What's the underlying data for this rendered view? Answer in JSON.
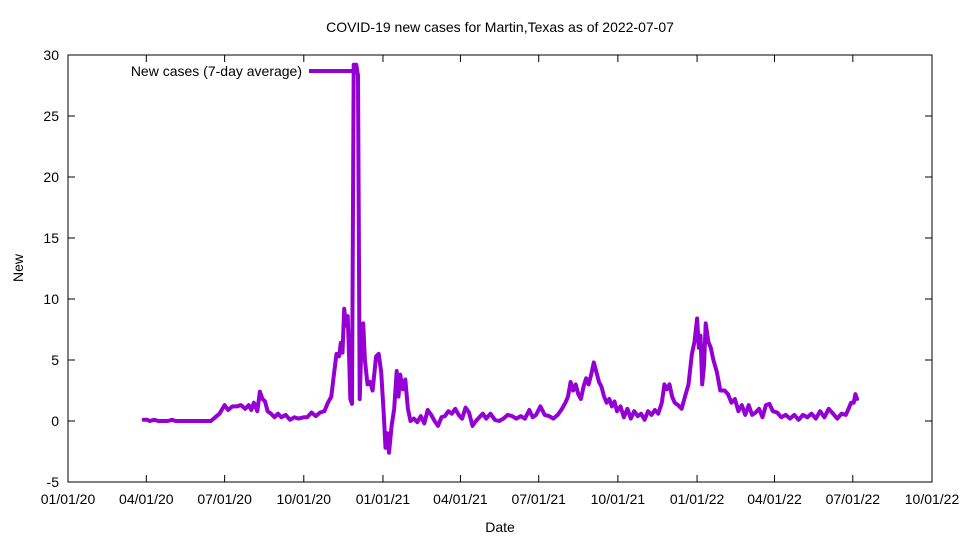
{
  "chart_data": {
    "type": "line",
    "title": "COVID-19 new cases for Martin,Texas as of 2022-07-07",
    "xlabel": "Date",
    "ylabel": "New",
    "xlim": [
      "2020-01-01",
      "2022-10-01"
    ],
    "ylim": [
      -5,
      30
    ],
    "grid": false,
    "legend_position": "top-left",
    "x_ticks": [
      "01/01/20",
      "04/01/20",
      "07/01/20",
      "10/01/20",
      "01/01/21",
      "04/01/21",
      "07/01/21",
      "10/01/21",
      "01/01/22",
      "04/01/22",
      "07/01/22",
      "10/01/22"
    ],
    "x_tick_dates": [
      "2020-01-01",
      "2020-04-01",
      "2020-07-01",
      "2020-10-01",
      "2021-01-01",
      "2021-04-01",
      "2021-07-01",
      "2021-10-01",
      "2022-01-01",
      "2022-04-01",
      "2022-07-01",
      "2022-10-01"
    ],
    "y_ticks": [
      -5,
      0,
      5,
      10,
      15,
      20,
      25,
      30
    ],
    "series": [
      {
        "name": "New cases (7-day average)",
        "color": "#9400d3",
        "points": [
          [
            "2020-03-29",
            0.1
          ],
          [
            "2020-04-02",
            0.1
          ],
          [
            "2020-04-05",
            0.0
          ],
          [
            "2020-04-10",
            0.1
          ],
          [
            "2020-04-15",
            0.0
          ],
          [
            "2020-04-20",
            0.0
          ],
          [
            "2020-04-26",
            0.0
          ],
          [
            "2020-05-01",
            0.1
          ],
          [
            "2020-05-05",
            0.0
          ],
          [
            "2020-05-15",
            0.0
          ],
          [
            "2020-05-25",
            0.0
          ],
          [
            "2020-06-05",
            0.0
          ],
          [
            "2020-06-15",
            0.0
          ],
          [
            "2020-06-20",
            0.3
          ],
          [
            "2020-06-25",
            0.6
          ],
          [
            "2020-07-01",
            1.3
          ],
          [
            "2020-07-05",
            0.9
          ],
          [
            "2020-07-10",
            1.2
          ],
          [
            "2020-07-15",
            1.2
          ],
          [
            "2020-07-20",
            1.3
          ],
          [
            "2020-07-25",
            1.0
          ],
          [
            "2020-07-29",
            1.3
          ],
          [
            "2020-08-01",
            0.9
          ],
          [
            "2020-08-04",
            1.5
          ],
          [
            "2020-08-08",
            0.8
          ],
          [
            "2020-08-11",
            2.4
          ],
          [
            "2020-08-14",
            1.8
          ],
          [
            "2020-08-17",
            1.6
          ],
          [
            "2020-08-20",
            0.8
          ],
          [
            "2020-08-24",
            0.6
          ],
          [
            "2020-08-28",
            0.3
          ],
          [
            "2020-09-01",
            0.6
          ],
          [
            "2020-09-05",
            0.3
          ],
          [
            "2020-09-10",
            0.5
          ],
          [
            "2020-09-15",
            0.1
          ],
          [
            "2020-09-20",
            0.3
          ],
          [
            "2020-09-25",
            0.2
          ],
          [
            "2020-10-01",
            0.3
          ],
          [
            "2020-10-05",
            0.3
          ],
          [
            "2020-10-10",
            0.7
          ],
          [
            "2020-10-15",
            0.4
          ],
          [
            "2020-10-20",
            0.7
          ],
          [
            "2020-10-25",
            0.8
          ],
          [
            "2020-10-29",
            1.5
          ],
          [
            "2020-11-02",
            2.0
          ],
          [
            "2020-11-05",
            3.8
          ],
          [
            "2020-11-08",
            5.5
          ],
          [
            "2020-11-11",
            5.3
          ],
          [
            "2020-11-13",
            6.4
          ],
          [
            "2020-11-15",
            5.6
          ],
          [
            "2020-11-17",
            9.2
          ],
          [
            "2020-11-19",
            7.8
          ],
          [
            "2020-11-21",
            8.6
          ],
          [
            "2020-11-23",
            4.5
          ],
          [
            "2020-11-24",
            1.8
          ],
          [
            "2020-11-26",
            1.4
          ],
          [
            "2020-11-28",
            29.2
          ],
          [
            "2020-12-01",
            29.2
          ],
          [
            "2020-12-03",
            28.3
          ],
          [
            "2020-12-05",
            1.8
          ],
          [
            "2020-12-07",
            6.5
          ],
          [
            "2020-12-09",
            8.0
          ],
          [
            "2020-12-11",
            5.0
          ],
          [
            "2020-12-14",
            3.0
          ],
          [
            "2020-12-17",
            3.2
          ],
          [
            "2020-12-20",
            2.5
          ],
          [
            "2020-12-24",
            5.3
          ],
          [
            "2020-12-27",
            5.5
          ],
          [
            "2020-12-30",
            4.0
          ],
          [
            "2021-01-02",
            0.5
          ],
          [
            "2021-01-04",
            -2.2
          ],
          [
            "2021-01-06",
            -1.0
          ],
          [
            "2021-01-08",
            -2.6
          ],
          [
            "2021-01-11",
            -0.4
          ],
          [
            "2021-01-14",
            1.0
          ],
          [
            "2021-01-17",
            4.1
          ],
          [
            "2021-01-19",
            2.0
          ],
          [
            "2021-01-21",
            3.8
          ],
          [
            "2021-01-24",
            2.6
          ],
          [
            "2021-01-27",
            3.4
          ],
          [
            "2021-01-30",
            1.0
          ],
          [
            "2021-02-02",
            0.0
          ],
          [
            "2021-02-06",
            0.2
          ],
          [
            "2021-02-10",
            -0.1
          ],
          [
            "2021-02-14",
            0.4
          ],
          [
            "2021-02-18",
            -0.2
          ],
          [
            "2021-02-22",
            0.9
          ],
          [
            "2021-02-26",
            0.5
          ],
          [
            "2021-03-02",
            0.0
          ],
          [
            "2021-03-06",
            -0.4
          ],
          [
            "2021-03-10",
            0.3
          ],
          [
            "2021-03-14",
            0.4
          ],
          [
            "2021-03-18",
            0.8
          ],
          [
            "2021-03-22",
            0.6
          ],
          [
            "2021-03-26",
            1.0
          ],
          [
            "2021-03-30",
            0.5
          ],
          [
            "2021-04-03",
            0.2
          ],
          [
            "2021-04-07",
            1.1
          ],
          [
            "2021-04-11",
            0.7
          ],
          [
            "2021-04-15",
            -0.4
          ],
          [
            "2021-04-19",
            0.0
          ],
          [
            "2021-04-23",
            0.3
          ],
          [
            "2021-04-27",
            0.6
          ],
          [
            "2021-05-01",
            0.2
          ],
          [
            "2021-05-06",
            0.6
          ],
          [
            "2021-05-11",
            0.1
          ],
          [
            "2021-05-16",
            0.0
          ],
          [
            "2021-05-21",
            0.2
          ],
          [
            "2021-05-26",
            0.5
          ],
          [
            "2021-05-31",
            0.4
          ],
          [
            "2021-06-05",
            0.2
          ],
          [
            "2021-06-10",
            0.4
          ],
          [
            "2021-06-15",
            0.2
          ],
          [
            "2021-06-20",
            0.9
          ],
          [
            "2021-06-24",
            0.3
          ],
          [
            "2021-06-28",
            0.5
          ],
          [
            "2021-07-03",
            1.2
          ],
          [
            "2021-07-08",
            0.5
          ],
          [
            "2021-07-13",
            0.4
          ],
          [
            "2021-07-18",
            0.2
          ],
          [
            "2021-07-23",
            0.5
          ],
          [
            "2021-07-28",
            1.0
          ],
          [
            "2021-08-01",
            1.5
          ],
          [
            "2021-08-04",
            2.0
          ],
          [
            "2021-08-07",
            3.2
          ],
          [
            "2021-08-10",
            2.5
          ],
          [
            "2021-08-13",
            3.0
          ],
          [
            "2021-08-16",
            2.2
          ],
          [
            "2021-08-19",
            1.8
          ],
          [
            "2021-08-22",
            2.8
          ],
          [
            "2021-08-25",
            3.5
          ],
          [
            "2021-08-28",
            3.0
          ],
          [
            "2021-08-31",
            3.8
          ],
          [
            "2021-09-03",
            4.8
          ],
          [
            "2021-09-06",
            4.0
          ],
          [
            "2021-09-09",
            3.2
          ],
          [
            "2021-09-12",
            2.8
          ],
          [
            "2021-09-15",
            2.0
          ],
          [
            "2021-09-18",
            1.5
          ],
          [
            "2021-09-21",
            1.8
          ],
          [
            "2021-09-24",
            1.2
          ],
          [
            "2021-09-27",
            1.6
          ],
          [
            "2021-09-30",
            0.8
          ],
          [
            "2021-10-04",
            1.2
          ],
          [
            "2021-10-08",
            0.3
          ],
          [
            "2021-10-12",
            1.0
          ],
          [
            "2021-10-16",
            0.2
          ],
          [
            "2021-10-20",
            0.8
          ],
          [
            "2021-10-24",
            0.4
          ],
          [
            "2021-10-28",
            0.6
          ],
          [
            "2021-11-01",
            0.1
          ],
          [
            "2021-11-05",
            0.8
          ],
          [
            "2021-11-09",
            0.5
          ],
          [
            "2021-11-13",
            0.9
          ],
          [
            "2021-11-17",
            0.6
          ],
          [
            "2021-11-21",
            1.5
          ],
          [
            "2021-11-24",
            3.0
          ],
          [
            "2021-11-27",
            2.6
          ],
          [
            "2021-11-30",
            3.0
          ],
          [
            "2021-12-03",
            2.0
          ],
          [
            "2021-12-06",
            1.5
          ],
          [
            "2021-12-10",
            1.3
          ],
          [
            "2021-12-14",
            1.0
          ],
          [
            "2021-12-18",
            2.0
          ],
          [
            "2021-12-22",
            3.0
          ],
          [
            "2021-12-26",
            5.5
          ],
          [
            "2021-12-29",
            6.5
          ],
          [
            "2022-01-01",
            8.4
          ],
          [
            "2022-01-03",
            6.0
          ],
          [
            "2022-01-05",
            7.0
          ],
          [
            "2022-01-07",
            3.0
          ],
          [
            "2022-01-09",
            4.5
          ],
          [
            "2022-01-11",
            8.0
          ],
          [
            "2022-01-14",
            6.5
          ],
          [
            "2022-01-17",
            6.0
          ],
          [
            "2022-01-20",
            5.0
          ],
          [
            "2022-01-24",
            4.0
          ],
          [
            "2022-01-28",
            2.5
          ],
          [
            "2022-02-02",
            2.5
          ],
          [
            "2022-02-06",
            2.2
          ],
          [
            "2022-02-10",
            1.5
          ],
          [
            "2022-02-14",
            1.8
          ],
          [
            "2022-02-18",
            0.8
          ],
          [
            "2022-02-22",
            1.3
          ],
          [
            "2022-02-26",
            0.5
          ],
          [
            "2022-03-02",
            1.3
          ],
          [
            "2022-03-06",
            0.5
          ],
          [
            "2022-03-10",
            0.7
          ],
          [
            "2022-03-14",
            1.0
          ],
          [
            "2022-03-18",
            0.3
          ],
          [
            "2022-03-22",
            1.3
          ],
          [
            "2022-03-26",
            1.4
          ],
          [
            "2022-03-30",
            0.8
          ],
          [
            "2022-04-04",
            0.7
          ],
          [
            "2022-04-09",
            0.3
          ],
          [
            "2022-04-14",
            0.5
          ],
          [
            "2022-04-19",
            0.2
          ],
          [
            "2022-04-24",
            0.5
          ],
          [
            "2022-04-29",
            0.1
          ],
          [
            "2022-05-04",
            0.5
          ],
          [
            "2022-05-09",
            0.3
          ],
          [
            "2022-05-14",
            0.6
          ],
          [
            "2022-05-19",
            0.2
          ],
          [
            "2022-05-24",
            0.8
          ],
          [
            "2022-05-29",
            0.3
          ],
          [
            "2022-06-03",
            1.0
          ],
          [
            "2022-06-08",
            0.6
          ],
          [
            "2022-06-13",
            0.2
          ],
          [
            "2022-06-18",
            0.6
          ],
          [
            "2022-06-23",
            0.5
          ],
          [
            "2022-06-26",
            1.0
          ],
          [
            "2022-06-29",
            1.5
          ],
          [
            "2022-07-02",
            1.5
          ],
          [
            "2022-07-04",
            2.2
          ],
          [
            "2022-07-06",
            1.8
          ]
        ]
      }
    ]
  }
}
